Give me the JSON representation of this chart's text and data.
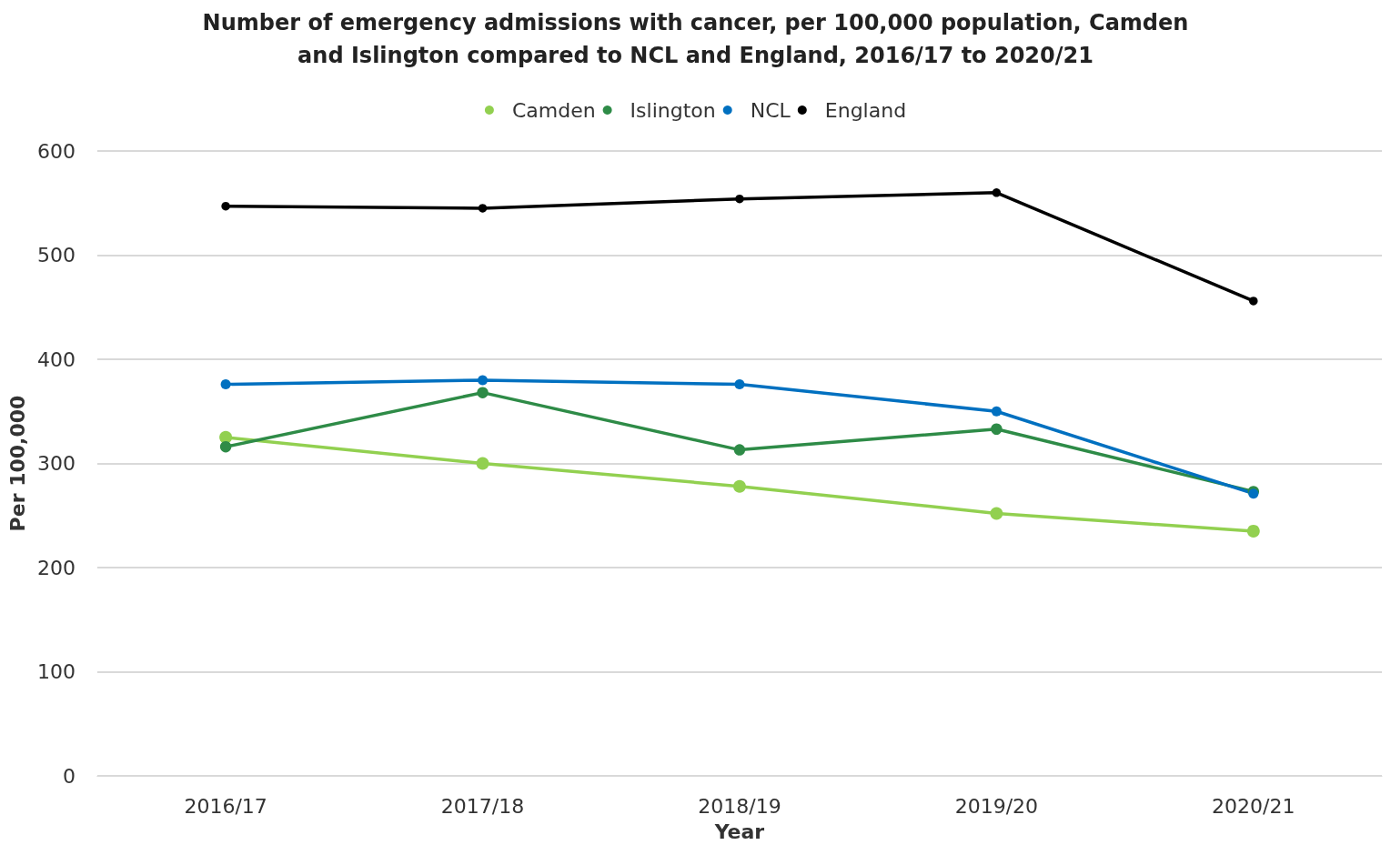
{
  "chart_data": {
    "type": "line",
    "title": "Number of emergency admissions with cancer, per 100,000 population, Camden\nand Islington compared to NCL and England, 2016/17 to 2020/21",
    "xlabel": "Year",
    "ylabel": "Per 100,000",
    "categories": [
      "2016/17",
      "2017/18",
      "2018/19",
      "2019/20",
      "2020/21"
    ],
    "series": [
      {
        "name": "Camden",
        "color": "#92d050",
        "values": [
          325,
          300,
          278,
          252,
          235
        ]
      },
      {
        "name": "Islington",
        "color": "#2e8b47",
        "values": [
          316,
          368,
          313,
          333,
          273
        ]
      },
      {
        "name": "NCL",
        "color": "#0070c0",
        "values": [
          376,
          380,
          376,
          350,
          271
        ]
      },
      {
        "name": "England",
        "color": "#000000",
        "values": [
          547,
          545,
          554,
          560,
          456
        ]
      }
    ],
    "ylim": [
      0,
      600
    ],
    "yticks": [
      0,
      100,
      200,
      300,
      400,
      500,
      600
    ],
    "grid": "y",
    "legend": "top",
    "marker": "circle",
    "line_style": "solid"
  }
}
